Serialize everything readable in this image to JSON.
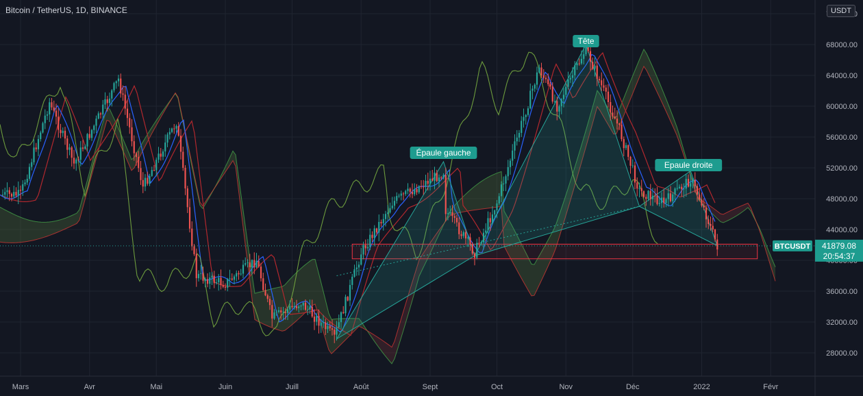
{
  "header": {
    "title": "Bitcoin / TetherUS, 1D, BINANCE",
    "unit_badge": "USDT"
  },
  "price_axis": {
    "ticks": [
      "28000.00",
      "32000.00",
      "36000.00",
      "40000.00",
      "44000.00",
      "48000.00",
      "52000.00",
      "56000.00",
      "60000.00",
      "64000.00",
      "68000.00",
      "72000.00"
    ]
  },
  "time_axis": {
    "labels": [
      "Mars",
      "Avr",
      "Mai",
      "Juin",
      "Juill",
      "Août",
      "Sept",
      "Oct",
      "Nov",
      "Déc",
      "2022",
      "Févr"
    ]
  },
  "last_price": {
    "symbol": "BTCUSDT",
    "price": "41879.08",
    "countdown": "20:54:37"
  },
  "annotations": {
    "left_shoulder": "Épaule gauche",
    "head": "Tête",
    "right_shoulder": "Epaule droite"
  },
  "colors": {
    "up": "#26a69a",
    "down": "#ef5350",
    "cloud_bull": "#4c6b3a",
    "cloud_bear": "#6b2f35",
    "tenkan": "#2962ff",
    "kijun": "#b2282e",
    "chikou": "#7cb342",
    "pattern": "#26a69a",
    "zone": "#f23645",
    "label_bg": "#1e9c8f"
  },
  "chart_data": {
    "type": "candlestick",
    "series_name": "BTCUSDT",
    "x_axis": [
      "Mars",
      "Avr",
      "Mai",
      "Juin",
      "Juill",
      "Août",
      "Sept",
      "Oct",
      "Nov",
      "Déc",
      "2022",
      "Févr"
    ],
    "ylim": [
      26000,
      74000
    ],
    "price_trend": [
      {
        "date": "2021-03-01",
        "close": 48500
      },
      {
        "date": "2021-03-14",
        "close": 60500
      },
      {
        "date": "2021-03-25",
        "close": 52500
      },
      {
        "date": "2021-04-14",
        "close": 63500
      },
      {
        "date": "2021-04-25",
        "close": 49500
      },
      {
        "date": "2021-05-10",
        "close": 58000
      },
      {
        "date": "2021-05-19",
        "close": 38000
      },
      {
        "date": "2021-06-01",
        "close": 37000
      },
      {
        "date": "2021-06-15",
        "close": 40000
      },
      {
        "date": "2021-06-22",
        "close": 32500
      },
      {
        "date": "2021-07-05",
        "close": 34500
      },
      {
        "date": "2021-07-20",
        "close": 30000
      },
      {
        "date": "2021-08-01",
        "close": 41000
      },
      {
        "date": "2021-08-15",
        "close": 47500
      },
      {
        "date": "2021-09-07",
        "close": 51500
      },
      {
        "date": "2021-09-08",
        "close": 46500
      },
      {
        "date": "2021-09-21",
        "close": 41000
      },
      {
        "date": "2021-10-01",
        "close": 47500
      },
      {
        "date": "2021-10-20",
        "close": 65000
      },
      {
        "date": "2021-10-28",
        "close": 60000
      },
      {
        "date": "2021-11-10",
        "close": 67500
      },
      {
        "date": "2021-11-25",
        "close": 57000
      },
      {
        "date": "2021-12-04",
        "close": 49000
      },
      {
        "date": "2021-12-15",
        "close": 47500
      },
      {
        "date": "2021-12-27",
        "close": 50500
      },
      {
        "date": "2022-01-01",
        "close": 47500
      },
      {
        "date": "2022-01-08",
        "close": 41879.08
      }
    ],
    "support_zone": [
      40200,
      42100
    ],
    "pattern": {
      "name": "Head and shoulders",
      "left_shoulder_label": "Épaule gauche",
      "head_label": "Tête",
      "right_shoulder_label": "Epaule droite"
    },
    "last_price": 41879.08,
    "countdown": "20:54:37"
  }
}
